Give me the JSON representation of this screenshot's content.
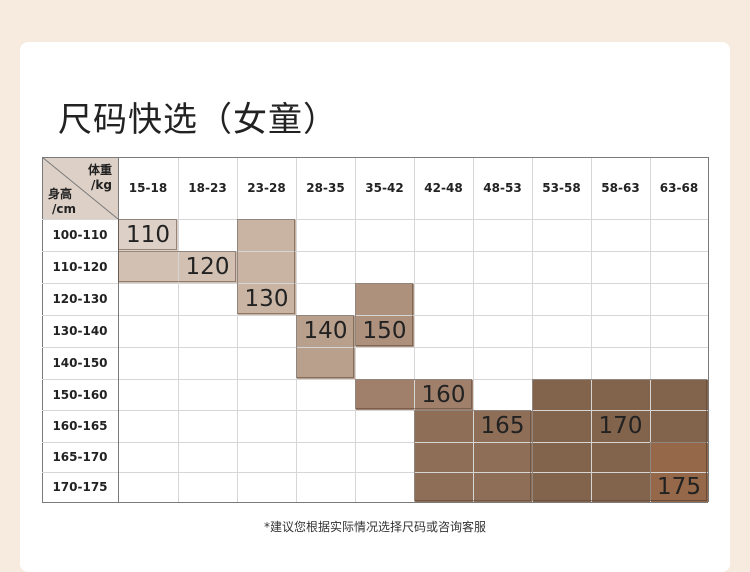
{
  "title": "尺码快选（女童）",
  "corner": {
    "weight_label": "体重",
    "weight_unit": "/kg",
    "height_label": "身高",
    "height_unit": "/cm"
  },
  "weight_ranges": [
    "15-18",
    "18-23",
    "23-28",
    "28-35",
    "35-42",
    "42-48",
    "48-53",
    "53-58",
    "58-63",
    "63-68"
  ],
  "height_ranges": [
    "100-110",
    "110-120",
    "120-130",
    "130-140",
    "140-150",
    "150-160",
    "160-165",
    "165-170",
    "170-175"
  ],
  "sizes": [
    {
      "label": "110",
      "color": "#ddd0c6",
      "rows": [
        0
      ],
      "cols": [
        0
      ]
    },
    {
      "label": "120",
      "color": "#d2c1b3",
      "rows": [
        1
      ],
      "cols": [
        0,
        1
      ]
    },
    {
      "label": "130",
      "color": "#c9b3a3",
      "rows": [
        0,
        1,
        2
      ],
      "cols": [
        2
      ]
    },
    {
      "label": "140",
      "color": "#b9a08d",
      "rows": [
        3,
        4
      ],
      "cols": [
        3
      ]
    },
    {
      "label": "150",
      "color": "#ad917d",
      "rows": [
        2,
        3
      ],
      "cols": [
        4
      ]
    },
    {
      "label": "160",
      "color": "#a0806b",
      "rows": [
        5
      ],
      "cols": [
        4,
        5
      ]
    },
    {
      "label": "165",
      "color": "#8f6e58",
      "rows": [
        6,
        7,
        8
      ],
      "cols": [
        5,
        6
      ]
    },
    {
      "label": "170",
      "color": "#82634c",
      "rows": [
        5,
        6,
        7,
        8
      ],
      "cols": [
        7,
        8,
        9
      ]
    },
    {
      "label": "175",
      "color": "#946848",
      "rows": [
        7,
        8
      ],
      "cols": [
        9
      ]
    }
  ],
  "note": "*建议您根据实际情况选择尺码或咨询客服",
  "colors": {
    "header_corner": "#ddd0c6",
    "background": "#f7ebdf",
    "border": "#7a7a7a"
  }
}
